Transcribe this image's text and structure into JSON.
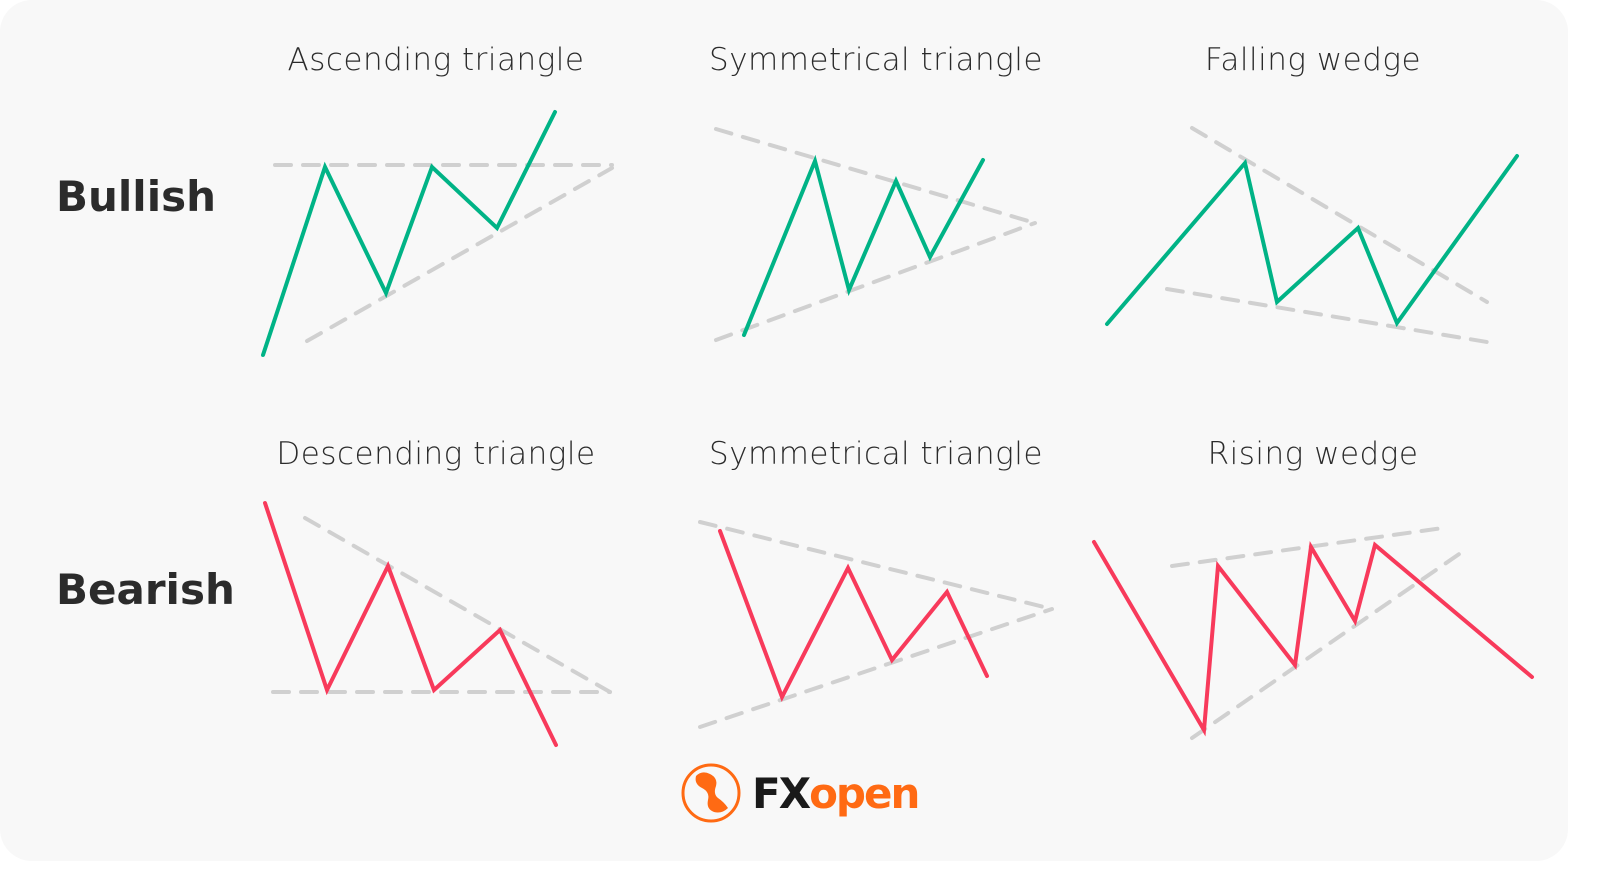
{
  "rows": {
    "bullish": "Bullish",
    "bearish": "Bearish"
  },
  "patterns": {
    "ascending_triangle": "Ascending triangle",
    "symmetrical_triangle_bull": "Symmetrical triangle",
    "falling_wedge": "Falling wedge",
    "descending_triangle": "Descending triangle",
    "symmetrical_triangle_bear": "Symmetrical triangle",
    "rising_wedge": "Rising wedge"
  },
  "colors": {
    "bullish": "#00b386",
    "bearish": "#f83a5b",
    "trendline": "#d0d0d0",
    "brand": "#ff6a13"
  },
  "logo": {
    "fx": "FX",
    "open": "open",
    "icon": "bull-bear-logo-icon"
  }
}
